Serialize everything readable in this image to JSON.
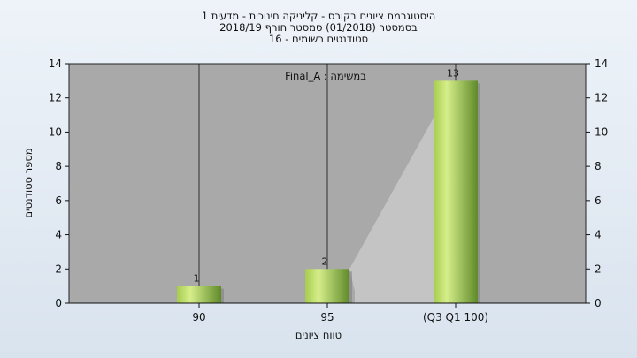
{
  "chart_data": {
    "type": "bar",
    "title_lines": [
      "היסטוגרמת ציונים בקורס - קליניקה חינוכית - מדעית 1",
      "בסמסטר  (01/2018)  סמסטר חורף 2018/19",
      "סטודנטים רשומים - 16"
    ],
    "categories": [
      "90",
      "95",
      "(Q3 Q1 100)"
    ],
    "values": [
      1,
      2,
      13
    ],
    "data_labels": [
      "1",
      "2",
      "13"
    ],
    "annotation": "במשימה : Final_A",
    "ylabel": "מספר סטודנטים",
    "xlabel": "טווח ציונים",
    "ylim": [
      0,
      14
    ],
    "yticks": [
      0,
      2,
      4,
      6,
      8,
      10,
      12,
      14
    ],
    "secondary_y_axis": true,
    "grid": "vertical",
    "colors": {
      "plot_bg": "#a9a9a9",
      "bar_light": "#d6ee8a",
      "bar_dark": "#5f8a2a",
      "shadow": "#c4c4c4"
    }
  }
}
